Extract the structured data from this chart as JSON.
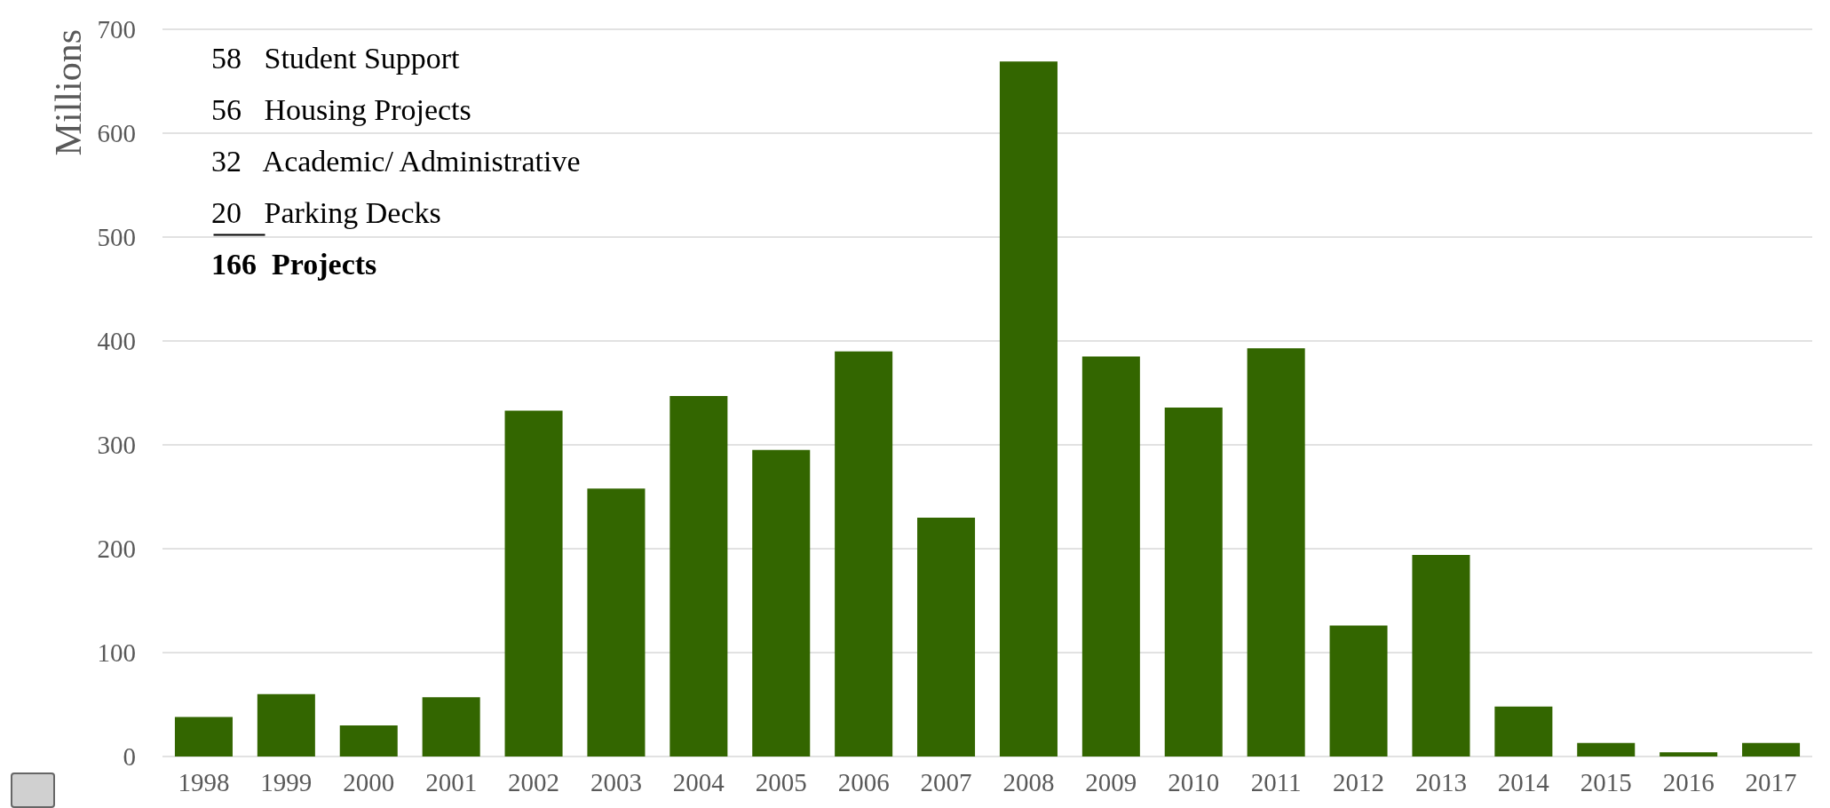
{
  "chart_data": {
    "type": "bar",
    "ylabel": "Millions",
    "categories": [
      "1998",
      "1999",
      "2000",
      "2001",
      "2002",
      "2003",
      "2004",
      "2005",
      "2006",
      "2007",
      "2008",
      "2009",
      "2010",
      "2011",
      "2012",
      "2013",
      "2014",
      "2015",
      "2016",
      "2017"
    ],
    "values": [
      38,
      60,
      30,
      57,
      333,
      258,
      347,
      295,
      390,
      230,
      669,
      385,
      336,
      393,
      126,
      194,
      48,
      13,
      4,
      13
    ],
    "color": "#336600",
    "ylim": [
      0,
      700
    ],
    "yticks": [
      0,
      100,
      200,
      300,
      400,
      500,
      600,
      700
    ],
    "grid": "y",
    "annotations": [
      "58   Student Support",
      "56   Housing Projects",
      "32   Academic/ Administrative",
      "20   Parking Decks",
      "166  Projects"
    ]
  }
}
